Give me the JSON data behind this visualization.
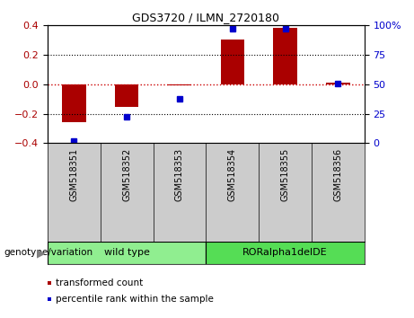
{
  "title": "GDS3720 / ILMN_2720180",
  "samples": [
    "GSM518351",
    "GSM518352",
    "GSM518353",
    "GSM518354",
    "GSM518355",
    "GSM518356"
  ],
  "transformed_count": [
    -0.255,
    -0.155,
    -0.01,
    0.305,
    0.385,
    0.01
  ],
  "percentile_rank_raw": [
    2,
    22,
    38,
    97,
    97,
    51
  ],
  "ylim": [
    -0.4,
    0.4
  ],
  "yticks_left": [
    -0.4,
    -0.2,
    0.0,
    0.2,
    0.4
  ],
  "yticks_right": [
    0,
    25,
    50,
    75,
    100
  ],
  "bar_color": "#AA0000",
  "dot_color": "#0000CC",
  "zero_line_color": "#CC0000",
  "group_label": "genotype/variation",
  "group1_label": "wild type",
  "group2_label": "RORalpha1delDE",
  "group_color": "#90EE90",
  "sample_box_color": "#cccccc",
  "legend_items": [
    {
      "label": "transformed count",
      "color": "#AA0000"
    },
    {
      "label": "percentile rank within the sample",
      "color": "#0000CC"
    }
  ],
  "background_color": "#ffffff"
}
